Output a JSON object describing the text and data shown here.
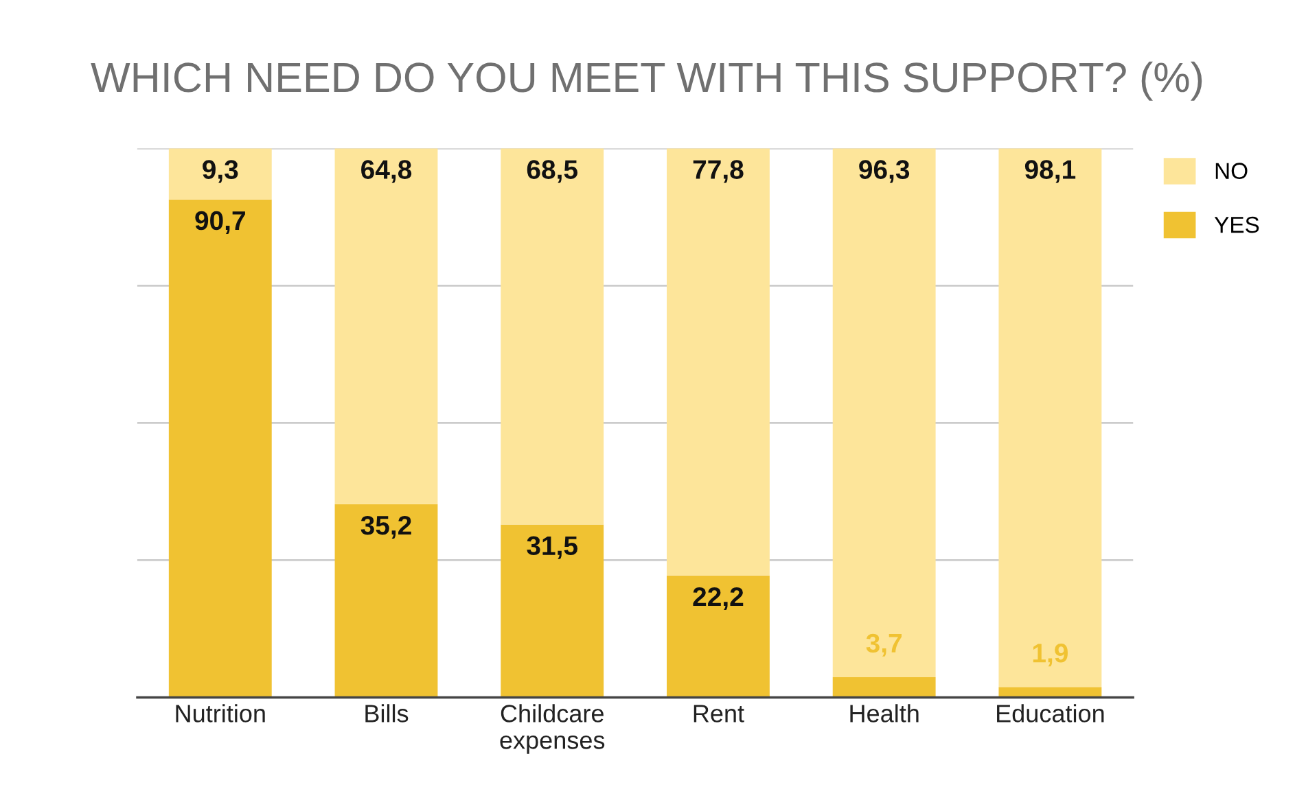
{
  "chart_data": {
    "type": "bar",
    "stacked": true,
    "title": "WHICH NEED DO YOU MEET WITH THIS SUPPORT? (%)",
    "categories": [
      "Nutrition",
      "Bills",
      "Childcare\nexpenses",
      "Rent",
      "Health",
      "Education"
    ],
    "series": [
      {
        "name": "YES",
        "color": "#f0c232",
        "values": [
          90.7,
          35.2,
          31.5,
          22.2,
          3.7,
          1.9
        ],
        "value_labels": [
          "90,7",
          "35,2",
          "31,5",
          "22,2",
          "3,7",
          "1,9"
        ]
      },
      {
        "name": "NO",
        "color": "#fde59a",
        "values": [
          9.3,
          64.8,
          68.5,
          77.8,
          96.3,
          98.1
        ],
        "value_labels": [
          "9,3",
          "64,8",
          "68,5",
          "77,8",
          "96,3",
          "98,1"
        ]
      }
    ],
    "ylim": [
      0,
      100
    ],
    "yticks": [
      {
        "value": 0,
        "label": null
      },
      {
        "value": 25,
        "label": null
      },
      {
        "value": 50,
        "label": null
      },
      {
        "value": 75,
        "label": null
      },
      {
        "value": 100,
        "label": null
      }
    ],
    "grid": "y",
    "legend": "top right"
  }
}
